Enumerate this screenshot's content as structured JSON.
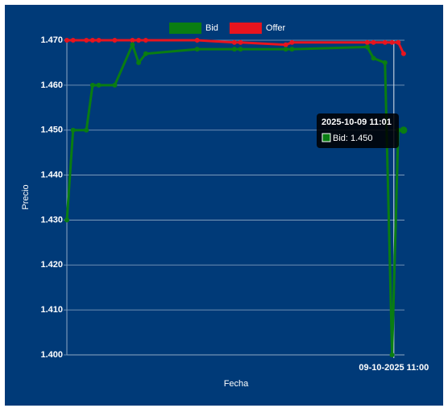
{
  "chart_data": {
    "type": "line",
    "x_label": "Fecha",
    "y_label": "Precio",
    "x": [
      623.1,
      623.8,
      625.3,
      626,
      626.7,
      628.5,
      630.5,
      631.2,
      632,
      637.8,
      642,
      642.7,
      647.8,
      648.5,
      657,
      657.7,
      659,
      659.8,
      660.5,
      661.1
    ],
    "series": [
      {
        "name": "Bid",
        "color": "#0a7d12",
        "values": [
          1.43,
          1.45,
          1.45,
          1.46,
          1.46,
          1.46,
          1.469,
          1.465,
          1.467,
          1.468,
          1.468,
          1.468,
          1.468,
          1.468,
          1.4685,
          1.466,
          1.465,
          1.4,
          1.45,
          1.45
        ]
      },
      {
        "name": "Offer",
        "color": "#e8141e",
        "values": [
          1.47,
          1.47,
          1.47,
          1.47,
          1.47,
          1.47,
          1.47,
          1.47,
          1.47,
          1.47,
          1.4695,
          1.4695,
          1.469,
          1.4695,
          1.4695,
          1.4695,
          1.4695,
          1.4695,
          1.4695,
          1.467
        ]
      }
    ],
    "xlim": [
      623.1,
      661.2
    ],
    "xticks": [
      {
        "value": 660,
        "label": "09-10-2025 11:00"
      }
    ],
    "ylim": [
      1.4,
      1.47
    ],
    "yticks": [
      {
        "value": 1.4,
        "label": "1.400"
      },
      {
        "value": 1.41,
        "label": "1.410"
      },
      {
        "value": 1.42,
        "label": "1.420"
      },
      {
        "value": 1.43,
        "label": "1.430"
      },
      {
        "value": 1.44,
        "label": "1.440"
      },
      {
        "value": 1.45,
        "label": "1.450"
      },
      {
        "value": 1.46,
        "label": "1.460"
      },
      {
        "value": 1.47,
        "label": "1.470"
      }
    ],
    "grid": true,
    "legend": "top",
    "tooltip": {
      "title": "2025-10-09 11:01",
      "label": "Bid: 1.450",
      "series": 0,
      "index": 19
    }
  }
}
